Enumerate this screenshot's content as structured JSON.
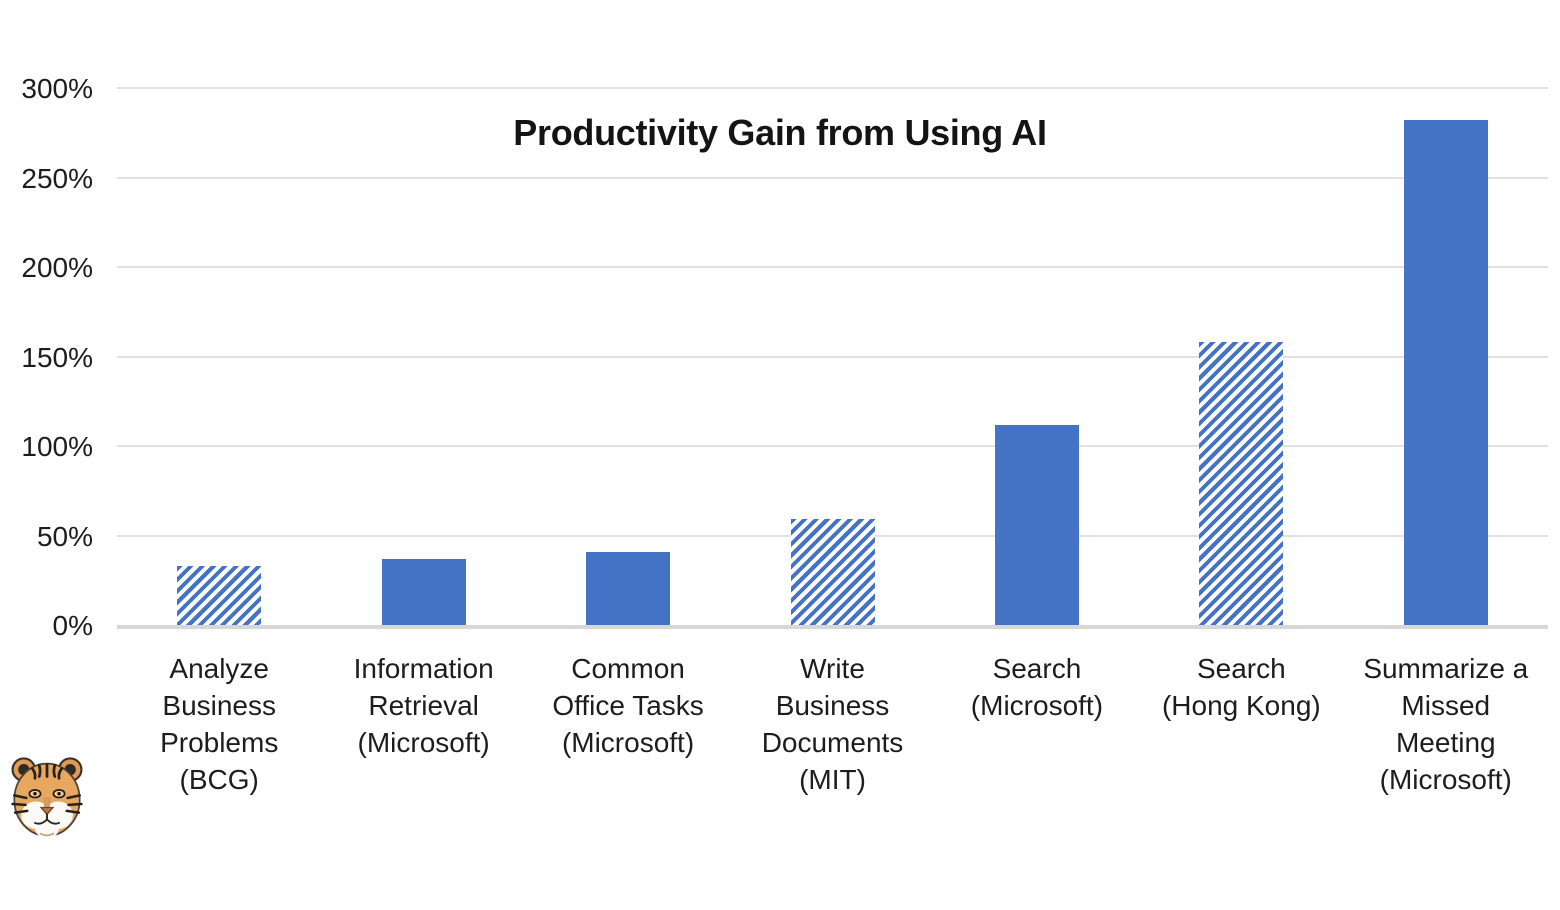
{
  "chart_data": {
    "type": "bar",
    "title": "Productivity Gain from Using AI",
    "categories": [
      "Analyze\nBusiness\nProblems\n(BCG)",
      "Information\nRetrieval\n(Microsoft)",
      "Common\nOffice Tasks\n(Microsoft)",
      "Write\nBusiness\nDocuments\n(MIT)",
      "Search\n(Microsoft)",
      "Search\n(Hong Kong)",
      "Summarize a\nMissed\nMeeting\n(Microsoft)"
    ],
    "categories_flat": [
      "Analyze Business Problems (BCG)",
      "Information Retrieval (Microsoft)",
      "Common Office Tasks (Microsoft)",
      "Write Business Documents (MIT)",
      "Search (Microsoft)",
      "Search (Hong Kong)",
      "Summarize a Missed Meeting (Microsoft)"
    ],
    "values": [
      33,
      37,
      41,
      59,
      112,
      158,
      282
    ],
    "value_unit": "%",
    "bar_patterns": [
      "hatched",
      "solid",
      "solid",
      "hatched",
      "solid",
      "hatched",
      "solid"
    ],
    "y_ticks": [
      {
        "value": 0,
        "label": "0%"
      },
      {
        "value": 50,
        "label": "50%"
      },
      {
        "value": 100,
        "label": "100%"
      },
      {
        "value": 150,
        "label": "150%"
      },
      {
        "value": 200,
        "label": "200%"
      },
      {
        "value": 250,
        "label": "250%"
      },
      {
        "value": 300,
        "label": "300%"
      }
    ],
    "ylim": [
      0,
      300
    ],
    "xlabel": "",
    "ylabel": "",
    "legend": "none",
    "grid": "horizontal",
    "bar_color": "#4472C4",
    "gridline_color": "#e1e1e1",
    "axis_line_color": "#d7d7d7",
    "background_color": "#ffffff"
  },
  "logo": {
    "name": "tiger-head-logo"
  }
}
